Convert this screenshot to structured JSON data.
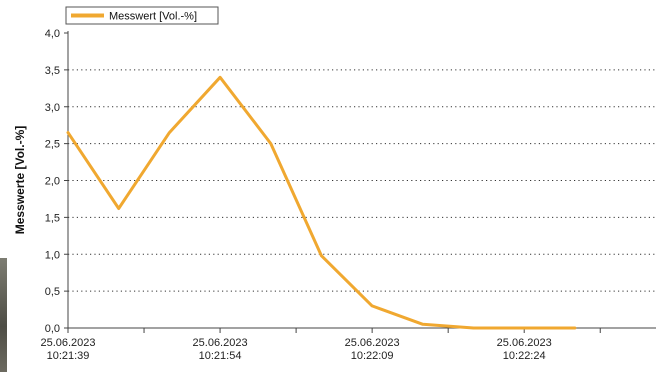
{
  "chart_data": {
    "type": "line",
    "title": "",
    "xlabel": "",
    "ylabel": "Messwerte [Vol.-%]",
    "legend": {
      "position": "top-left"
    },
    "grid": {
      "y": true,
      "x": false,
      "style": "dotted"
    },
    "ylim": [
      0,
      4
    ],
    "yticks": [
      "0,0",
      "0,5",
      "1,0",
      "1,5",
      "2,0",
      "2,5",
      "3,0",
      "3,5",
      "4,0"
    ],
    "xlim": [
      "10:21:39",
      "10:22:37"
    ],
    "xticks": [
      {
        "date": "25.06.2023",
        "time": "10:21:39"
      },
      {
        "date": "25.06.2023",
        "time": "10:21:54"
      },
      {
        "date": "25.06.2023",
        "time": "10:22:09"
      },
      {
        "date": "25.06.2023",
        "time": "10:22:24"
      }
    ],
    "series": [
      {
        "name": "Messwert [Vol.-%]",
        "color": "#f0a830",
        "points": [
          {
            "x": "10:21:39",
            "y": 2.65
          },
          {
            "x": "10:21:44",
            "y": 1.62
          },
          {
            "x": "10:21:49",
            "y": 2.65
          },
          {
            "x": "10:21:54",
            "y": 3.4
          },
          {
            "x": "10:21:59",
            "y": 2.5
          },
          {
            "x": "10:22:04",
            "y": 0.98
          },
          {
            "x": "10:22:09",
            "y": 0.3
          },
          {
            "x": "10:22:14",
            "y": 0.05
          },
          {
            "x": "10:22:19",
            "y": 0.0
          },
          {
            "x": "10:22:24",
            "y": 0.0
          },
          {
            "x": "10:22:29",
            "y": 0.0
          }
        ]
      }
    ]
  }
}
